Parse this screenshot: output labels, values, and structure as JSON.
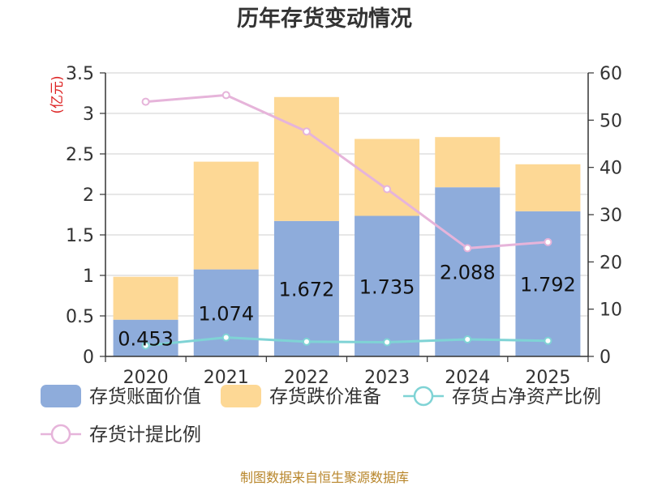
{
  "chart_data": {
    "type": "bar",
    "title": "历年存货变动情况",
    "categories": [
      "2020",
      "2021",
      "2022",
      "2023",
      "2024",
      "2025"
    ],
    "left_axis": {
      "unit_label": "(亿元)",
      "ylim": [
        0,
        3.5
      ],
      "ticks": [
        "0",
        "0.5",
        "1",
        "1.5",
        "2",
        "2.5",
        "3",
        "3.5"
      ]
    },
    "right_axis": {
      "ylim": [
        0,
        60
      ],
      "ticks": [
        "0",
        "10",
        "20",
        "30",
        "40",
        "50",
        "60"
      ]
    },
    "stacked_bars": [
      {
        "name": "存货账面价值",
        "color": "#8eacdb",
        "values": [
          0.453,
          1.074,
          1.672,
          1.735,
          2.088,
          1.792
        ],
        "labels": [
          "0.453",
          "1.074",
          "1.672",
          "1.735",
          "2.088",
          "1.792"
        ]
      },
      {
        "name": "存货跌价准备",
        "color": "#fdd895",
        "values": [
          0.53,
          1.33,
          1.53,
          0.95,
          0.62,
          0.58
        ]
      }
    ],
    "lines": [
      {
        "name": "存货占净资产比例",
        "color": "#7fd3d5",
        "axis": "right",
        "values": [
          2.3,
          4.0,
          3.1,
          3.0,
          3.6,
          3.3
        ]
      },
      {
        "name": "存货计提比例",
        "color": "#e6b4da",
        "axis": "right",
        "values": [
          53.9,
          55.3,
          47.6,
          35.4,
          22.9,
          24.2
        ]
      }
    ],
    "grid": true,
    "legend_position": "bottom"
  },
  "source_text": "制图数据来自恒生聚源数据库"
}
